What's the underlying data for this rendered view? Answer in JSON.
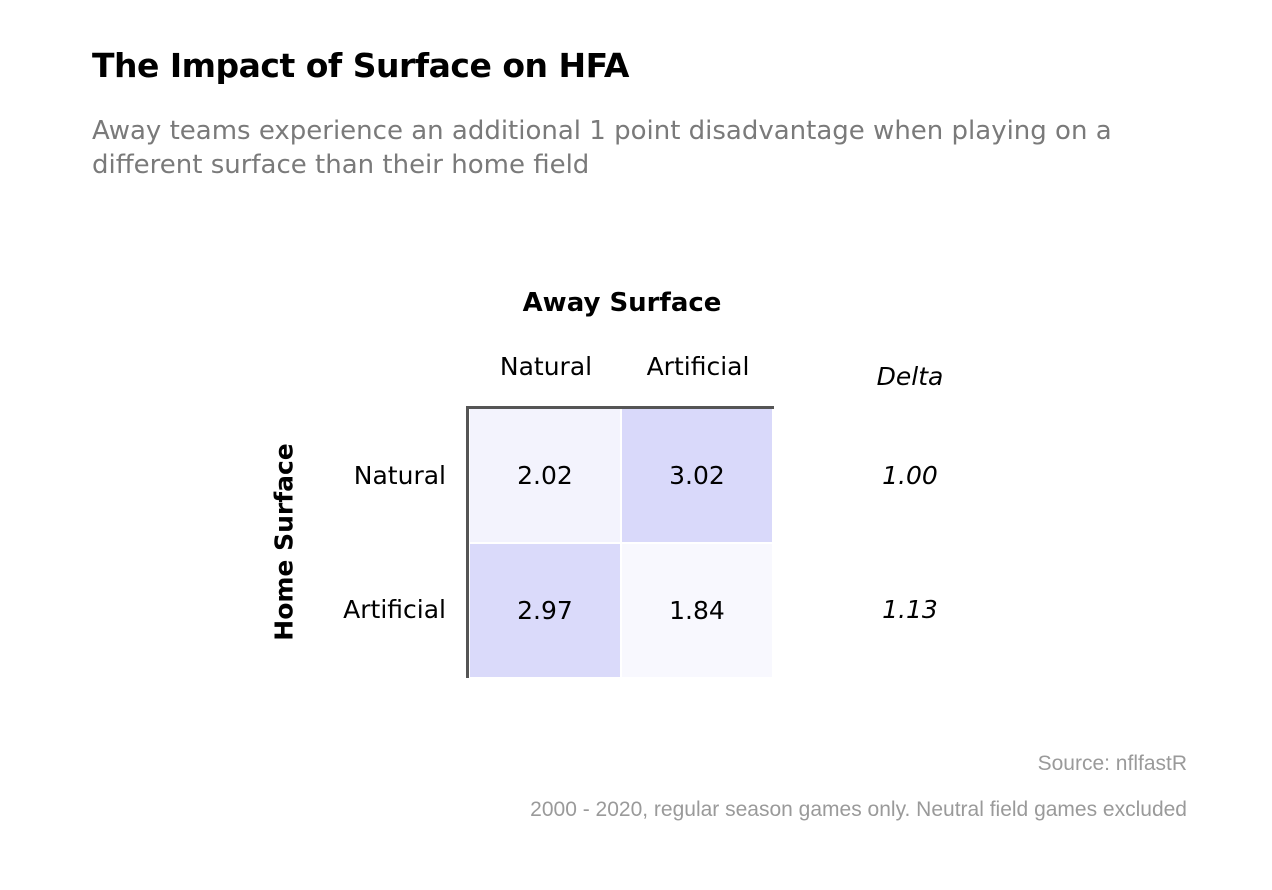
{
  "chart_data": {
    "type": "heatmap",
    "title": "The Impact of Surface on HFA",
    "subtitle": "Away teams experience an additional 1 point disadvantage when playing on a different surface than their home field",
    "xlabel": "Away Surface",
    "ylabel": "Home Surface",
    "columns": [
      "Natural",
      "Artificial"
    ],
    "rows": [
      "Natural",
      "Artificial"
    ],
    "values": [
      [
        2.02,
        3.02
      ],
      [
        2.97,
        1.84
      ]
    ],
    "value_labels": [
      [
        "2.02",
        "3.02"
      ],
      [
        "2.97",
        "1.84"
      ]
    ],
    "delta_header": "Delta",
    "deltas": [
      "1.00",
      "1.13"
    ],
    "source": "Source: nflfastR",
    "note": "2000 - 2020, regular season games only. Neutral field games excluded"
  },
  "colors": {
    "low": "#f8f8fe",
    "high": "#d9d9fa",
    "axis": "#555555",
    "subtitle": "#7a7a7a",
    "footnote": "#9a9a9a"
  }
}
